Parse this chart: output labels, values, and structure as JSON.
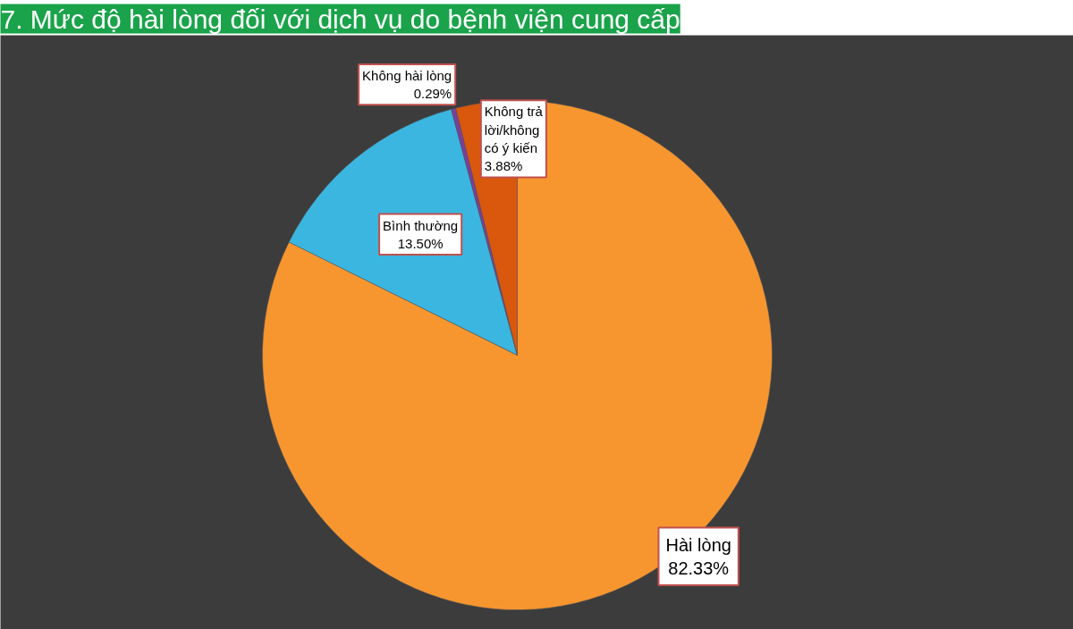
{
  "chart_data": {
    "type": "pie",
    "title": "7. Mức độ hài lòng đối với dịch vụ do bệnh viện cung cấp",
    "categories": [
      "Hài lòng",
      "Bình thường",
      "Không hài lòng",
      "Không trả lời/không có ý kiến"
    ],
    "values": [
      82.33,
      13.5,
      0.29,
      3.88
    ],
    "colors": [
      "#f7962f",
      "#3bb6e0",
      "#7a3f9d",
      "#d9580d"
    ],
    "value_labels": [
      "82.33%",
      "13.50%",
      "0.29%",
      "3.88%"
    ]
  }
}
